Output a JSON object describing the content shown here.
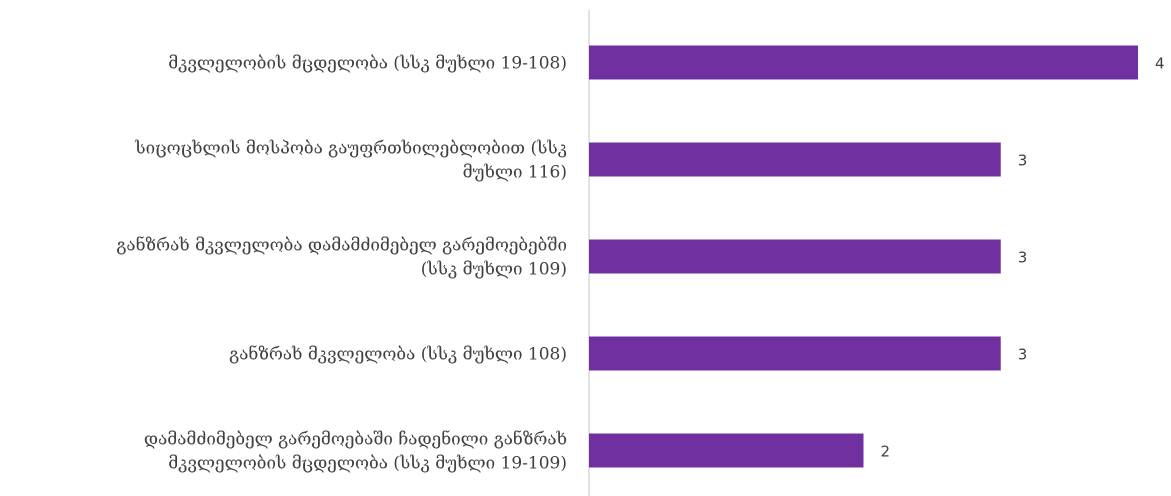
{
  "chart_data": {
    "type": "bar",
    "orientation": "horizontal",
    "categories": [
      [
        "მკვლელობის მცდელობა (სსკ მუხლი 19-108)"
      ],
      [
        "სიცოცხლის მოსპობა გაუფრთხილებლობით (სსკ",
        "მუხლი 116)"
      ],
      [
        "განზრახ მკვლელობა დამამძიმებელ გარემოებებში",
        "(სსკ მუხლი 109)"
      ],
      [
        "განზრახ მკვლელობა (სსკ მუხლი 108)"
      ],
      [
        "დამამძიმებელ გარემოებაში ჩადენილი განზრახ",
        "მკვლელობის მცდელობა (სსკ მუხლი 19-109)"
      ]
    ],
    "values": [
      4,
      3,
      3,
      3,
      2
    ],
    "xlim": [
      0,
      4
    ],
    "bar_color": "#7030a0",
    "axis_color": "#d9d9d9",
    "grid": false,
    "data_labels": true,
    "title": "",
    "xlabel": "",
    "ylabel": ""
  }
}
